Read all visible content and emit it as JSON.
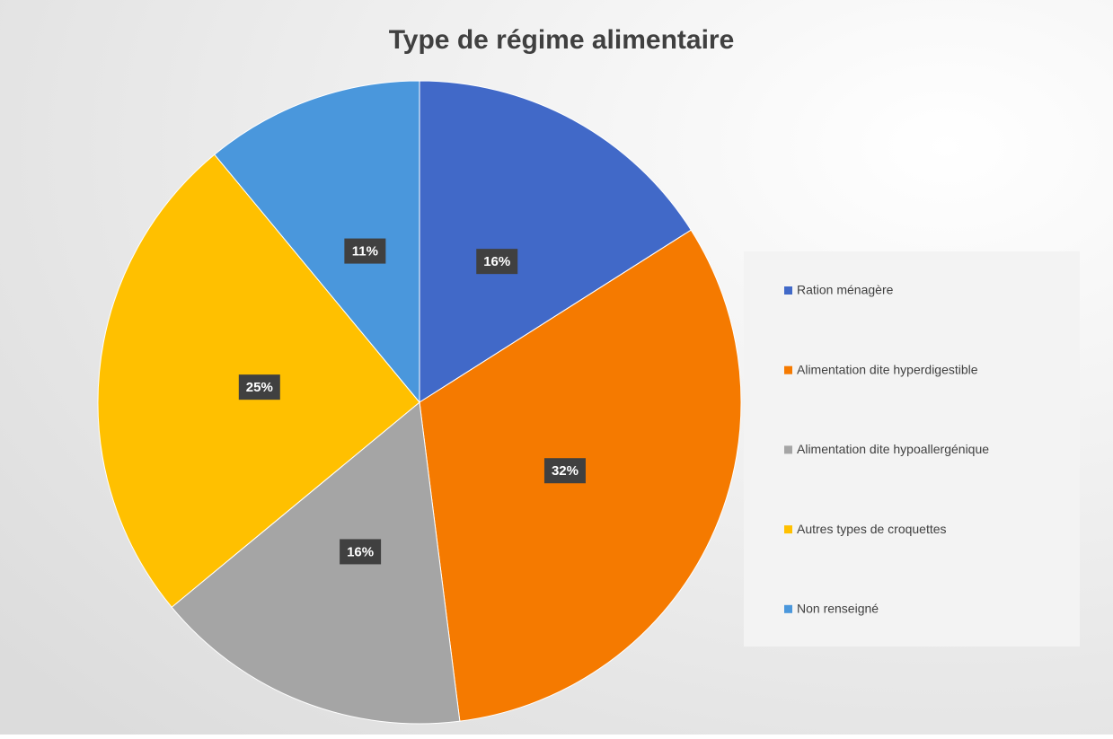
{
  "chart_data": {
    "type": "pie",
    "title": "Type de régime alimentaire",
    "categories": [
      "Ration ménagère",
      "Alimentation dite hyperdigestible",
      "Alimentation dite hypoallergénique",
      "Autres types de croquettes",
      "Non renseigné"
    ],
    "values": [
      16,
      32,
      16,
      25,
      11
    ],
    "value_labels": [
      "16%",
      "32%",
      "16%",
      "25%",
      "11%"
    ],
    "colors": [
      "#4169c8",
      "#f57a00",
      "#a5a5a5",
      "#ffc000",
      "#4a97dc"
    ],
    "legend": "right"
  }
}
